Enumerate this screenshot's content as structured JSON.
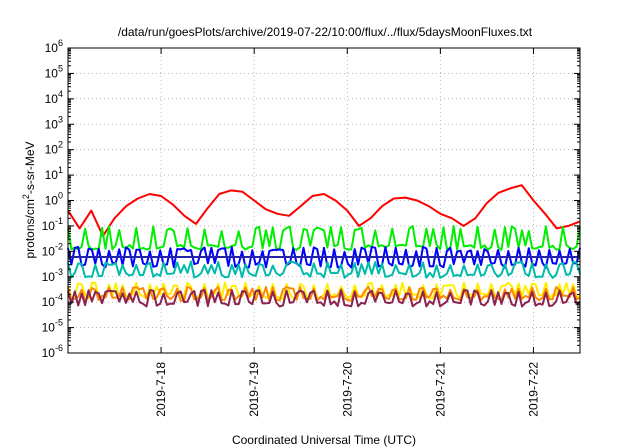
{
  "chart_data": {
    "type": "line",
    "title": "/data/run/goesPlots/archive/2019-07-22/10:00/flux/../flux/5daysMoonFluxes.txt",
    "xlabel": "Coordinated Universal Time (UTC)",
    "ylabel": {
      "prefix": "protons/cm",
      "sup": "2",
      "suffix": "-s-sr-MeV"
    },
    "y_scale": "log",
    "ylim": [
      1e-06,
      1000000.0
    ],
    "y_ticks": [
      {
        "exp": "-6",
        "value": 1e-06
      },
      {
        "exp": "-5",
        "value": 1e-05
      },
      {
        "exp": "-4",
        "value": 0.0001
      },
      {
        "exp": "-3",
        "value": 0.001
      },
      {
        "exp": "-2",
        "value": 0.01
      },
      {
        "exp": "-1",
        "value": 0.1
      },
      {
        "exp": "0",
        "value": 1
      },
      {
        "exp": "1",
        "value": 10
      },
      {
        "exp": "2",
        "value": 100
      },
      {
        "exp": "3",
        "value": 1000
      },
      {
        "exp": "4",
        "value": 10000
      },
      {
        "exp": "5",
        "value": 100000
      },
      {
        "exp": "6",
        "value": 1000000
      }
    ],
    "xlim": [
      "2019-07-17T00:00",
      "2019-07-22T12:00"
    ],
    "x_ticks": [
      {
        "label": "2019-7-18",
        "value": "2019-07-18T00:00"
      },
      {
        "label": "2019-7-19",
        "value": "2019-07-19T00:00"
      },
      {
        "label": "2019-7-20",
        "value": "2019-07-20T00:00"
      },
      {
        "label": "2019-7-21",
        "value": "2019-07-21T00:00"
      },
      {
        "label": "2019-7-22",
        "value": "2019-07-22T00:00"
      }
    ],
    "grid": true,
    "legend": "none",
    "series": [
      {
        "color": "#ff0000",
        "style": "smooth",
        "x": [
          "2019-07-17T00:00",
          "2019-07-17T03:00",
          "2019-07-17T06:00",
          "2019-07-17T09:00",
          "2019-07-17T12:00",
          "2019-07-17T15:00",
          "2019-07-17T18:00",
          "2019-07-17T21:00",
          "2019-07-18T00:00",
          "2019-07-18T03:00",
          "2019-07-18T06:00",
          "2019-07-18T09:00",
          "2019-07-18T12:00",
          "2019-07-18T15:00",
          "2019-07-18T18:00",
          "2019-07-18T21:00",
          "2019-07-19T00:00",
          "2019-07-19T03:00",
          "2019-07-19T06:00",
          "2019-07-19T09:00",
          "2019-07-19T12:00",
          "2019-07-19T15:00",
          "2019-07-19T18:00",
          "2019-07-19T21:00",
          "2019-07-20T00:00",
          "2019-07-20T03:00",
          "2019-07-20T06:00",
          "2019-07-20T09:00",
          "2019-07-20T12:00",
          "2019-07-20T15:00",
          "2019-07-20T18:00",
          "2019-07-20T21:00",
          "2019-07-21T00:00",
          "2019-07-21T03:00",
          "2019-07-21T06:00",
          "2019-07-21T09:00",
          "2019-07-21T12:00",
          "2019-07-21T15:00",
          "2019-07-21T18:00",
          "2019-07-21T21:00",
          "2019-07-22T00:00",
          "2019-07-22T03:00",
          "2019-07-22T06:00",
          "2019-07-22T09:00",
          "2019-07-22T12:00"
        ],
        "y": [
          0.4,
          0.08,
          0.4,
          0.04,
          0.2,
          0.6,
          1.2,
          1.8,
          1.5,
          0.7,
          0.25,
          0.12,
          0.5,
          1.8,
          2.5,
          2.2,
          1.0,
          0.45,
          0.3,
          0.25,
          0.6,
          1.5,
          1.8,
          1.0,
          0.4,
          0.1,
          0.2,
          0.6,
          1.2,
          1.3,
          1.0,
          0.6,
          0.3,
          0.2,
          0.1,
          0.2,
          0.8,
          2.0,
          3.0,
          4.0,
          1.0,
          0.3,
          0.08,
          0.1,
          0.15
        ]
      },
      {
        "color": "#00ee00",
        "style": "spiky",
        "base": 0.015,
        "peak": 0.1,
        "period": 5
      },
      {
        "color": "#0000ff",
        "style": "spiky",
        "base": 0.003,
        "peak": 0.015,
        "period": 3
      },
      {
        "color": "#2222aa",
        "style": "flat",
        "value": 0.006
      },
      {
        "color": "#00bbaa",
        "style": "spiky",
        "base": 0.0012,
        "peak": 0.004,
        "period": 4
      },
      {
        "color": "#ffee00",
        "style": "spiky",
        "base": 0.00018,
        "peak": 0.0006,
        "period": 4
      },
      {
        "color": "#ff8800",
        "style": "spiky",
        "base": 0.00015,
        "peak": 0.0004,
        "period": 4
      },
      {
        "color": "#8b2252",
        "style": "spiky",
        "base": 9e-05,
        "peak": 0.0003,
        "period": 4
      }
    ]
  }
}
